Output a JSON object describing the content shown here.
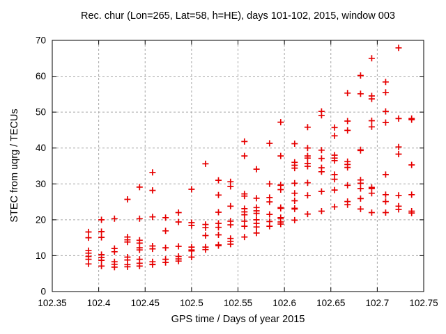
{
  "chart_data": {
    "type": "scatter",
    "title": "Rec. chur (Lon=265, Lat=58, h=HE), days 101-102, 2015, window 003",
    "xlabel": "GPS time / Days of year 2015",
    "ylabel": "STEC from uqrg / TECUs",
    "xlim": [
      102.35,
      102.75
    ],
    "ylim": [
      0,
      70
    ],
    "xticks": [
      102.35,
      102.4,
      102.45,
      102.5,
      102.55,
      102.6,
      102.65,
      102.7,
      102.75
    ],
    "xtick_labels": [
      "102.35",
      "102.4",
      "102.45",
      "102.5",
      "102.55",
      "102.6",
      "102.65",
      "102.7",
      "102.75"
    ],
    "yticks": [
      0,
      10,
      20,
      30,
      40,
      50,
      60,
      70
    ],
    "ytick_labels": [
      "0",
      "10",
      "20",
      "30",
      "40",
      "50",
      "60",
      "70"
    ],
    "grid": true,
    "legend": false,
    "marker": "plus",
    "marker_color": "#e60000",
    "grid_color": "#a6a6a6",
    "axis_color": "#000000",
    "series": [
      {
        "name": "STEC",
        "groups": [
          {
            "x": 102.389,
            "y": [
              16.6,
              15.0,
              11.4,
              10.7,
              9.8,
              9.0,
              7.7
            ]
          },
          {
            "x": 102.403,
            "y": [
              20.0,
              16.7,
              15.1,
              10.3,
              9.5,
              8.7,
              7.1
            ]
          },
          {
            "x": 102.417,
            "y": [
              20.3,
              12.0,
              11.1,
              8.3,
              7.6,
              6.8
            ]
          },
          {
            "x": 102.431,
            "y": [
              25.7,
              15.2,
              14.4,
              13.8,
              9.6,
              8.8,
              7.5,
              6.9
            ]
          },
          {
            "x": 102.444,
            "y": [
              29.1,
              20.3,
              14.3,
              13.5,
              12.2,
              11.6,
              9.0,
              7.9,
              7.1
            ]
          },
          {
            "x": 102.458,
            "y": [
              33.2,
              28.2,
              20.8,
              12.7,
              11.9,
              8.3,
              7.6,
              7.5
            ]
          },
          {
            "x": 102.472,
            "y": [
              20.6,
              16.9,
              12.2,
              9.0,
              8.1
            ]
          },
          {
            "x": 102.486,
            "y": [
              22.0,
              19.4,
              12.6,
              9.8,
              9.1,
              8.5
            ]
          },
          {
            "x": 102.5,
            "y": [
              28.5,
              19.2,
              18.4,
              12.4,
              11.6,
              11.3,
              9.6
            ]
          },
          {
            "x": 102.515,
            "y": [
              35.6,
              18.7,
              17.8,
              15.6,
              12.4,
              11.7
            ]
          },
          {
            "x": 102.529,
            "y": [
              31.0,
              26.9,
              22.1,
              19.0,
              17.9,
              15.8,
              13.0,
              12.8
            ]
          },
          {
            "x": 102.542,
            "y": [
              30.6,
              29.3,
              23.8,
              19.6,
              18.6,
              14.8,
              14.0,
              13.2
            ]
          },
          {
            "x": 102.557,
            "y": [
              41.8,
              37.8,
              27.2,
              26.6,
              23.1,
              22.2,
              21.4,
              19.6,
              18.2,
              15.2
            ]
          },
          {
            "x": 102.57,
            "y": [
              34.1,
              26.0,
              23.4,
              22.5,
              21.8,
              20.0,
              19.0,
              18.0,
              16.3
            ]
          },
          {
            "x": 102.584,
            "y": [
              41.3,
              30.0,
              26.2,
              25.0,
              21.5,
              19.5,
              18.2
            ]
          },
          {
            "x": 102.596,
            "y": [
              47.2,
              37.8,
              29.7,
              29.6,
              28.4,
              23.4,
              23.2,
              20.6,
              20.4,
              19.4,
              18.8
            ]
          },
          {
            "x": 102.611,
            "y": [
              41.2,
              36.0,
              35.2,
              34.4,
              30.2,
              27.4,
              25.3,
              23.2,
              23.0,
              19.9
            ]
          },
          {
            "x": 102.625,
            "y": [
              45.8,
              40.0,
              37.8,
              37.2,
              35.7,
              34.9,
              30.3,
              26.8,
              21.6
            ]
          },
          {
            "x": 102.64,
            "y": [
              50.2,
              49.1,
              39.4,
              37.1,
              34.5,
              33.4,
              27.9,
              22.4
            ]
          },
          {
            "x": 102.654,
            "y": [
              45.7,
              43.4,
              38.0,
              37.2,
              36.5,
              32.6,
              31.3,
              28.3,
              23.6
            ]
          },
          {
            "x": 102.668,
            "y": [
              55.3,
              47.5,
              44.9,
              36.2,
              35.4,
              34.6,
              29.6,
              25.1,
              24.2
            ]
          },
          {
            "x": 102.682,
            "y": [
              60.2,
              55.1,
              39.5,
              39.3,
              31.1,
              30.2,
              28.7,
              25.9,
              23.0
            ]
          },
          {
            "x": 102.694,
            "y": [
              65.0,
              54.5,
              53.7,
              47.6,
              45.9,
              29.0,
              28.7,
              27.4,
              22.0
            ]
          },
          {
            "x": 102.709,
            "y": [
              58.4,
              55.5,
              50.2,
              47.1,
              32.6,
              27.0,
              25.1,
              22.0
            ]
          },
          {
            "x": 102.723,
            "y": [
              67.9,
              48.2,
              40.3,
              38.3,
              26.8,
              23.8,
              22.9
            ]
          },
          {
            "x": 102.737,
            "y": [
              48.2,
              47.9,
              35.3,
              27.0,
              22.4,
              21.9
            ]
          }
        ]
      }
    ]
  }
}
